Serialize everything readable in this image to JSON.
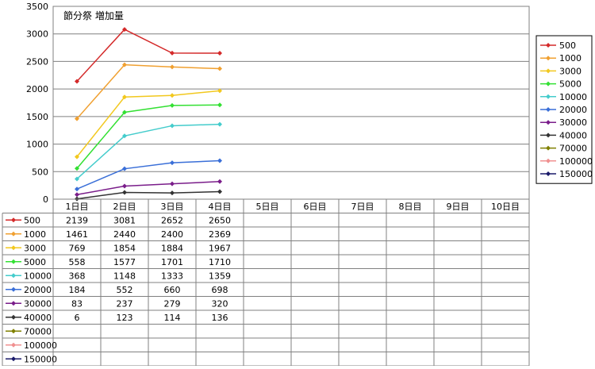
{
  "chart_data": {
    "type": "line",
    "title": "節分祭  増加量",
    "xlabel": "",
    "ylabel": "",
    "ylim": [
      0,
      3500
    ],
    "yticks": [
      0,
      500,
      1000,
      1500,
      2000,
      2500,
      3000,
      3500
    ],
    "grid": true,
    "legend_position": "right",
    "data_table": true,
    "categories": [
      "1日目",
      "2日目",
      "3日目",
      "4日目",
      "5日目",
      "6日目",
      "7日目",
      "8日目",
      "9日目",
      "10日目"
    ],
    "series": [
      {
        "name": "500",
        "color": "#d42a2a",
        "values": [
          2139,
          3081,
          2652,
          2650,
          null,
          null,
          null,
          null,
          null,
          null
        ]
      },
      {
        "name": "1000",
        "color": "#f0a030",
        "values": [
          1461,
          2440,
          2400,
          2369,
          null,
          null,
          null,
          null,
          null,
          null
        ]
      },
      {
        "name": "3000",
        "color": "#f2c81e",
        "values": [
          769,
          1854,
          1884,
          1967,
          null,
          null,
          null,
          null,
          null,
          null
        ]
      },
      {
        "name": "5000",
        "color": "#33e033",
        "values": [
          558,
          1577,
          1701,
          1710,
          null,
          null,
          null,
          null,
          null,
          null
        ]
      },
      {
        "name": "10000",
        "color": "#44cccc",
        "values": [
          368,
          1148,
          1333,
          1359,
          null,
          null,
          null,
          null,
          null,
          null
        ]
      },
      {
        "name": "20000",
        "color": "#3a6fd8",
        "values": [
          184,
          552,
          660,
          698,
          null,
          null,
          null,
          null,
          null,
          null
        ]
      },
      {
        "name": "30000",
        "color": "#7a1d8a",
        "values": [
          83,
          237,
          279,
          320,
          null,
          null,
          null,
          null,
          null,
          null
        ]
      },
      {
        "name": "40000",
        "color": "#333333",
        "values": [
          6,
          123,
          114,
          136,
          null,
          null,
          null,
          null,
          null,
          null
        ]
      },
      {
        "name": "70000",
        "color": "#808000",
        "values": [
          null,
          null,
          null,
          null,
          null,
          null,
          null,
          null,
          null,
          null
        ]
      },
      {
        "name": "100000",
        "color": "#f09090",
        "values": [
          null,
          null,
          null,
          null,
          null,
          null,
          null,
          null,
          null,
          null
        ]
      },
      {
        "name": "150000",
        "color": "#1a1a6a",
        "values": [
          null,
          null,
          null,
          null,
          null,
          null,
          null,
          null,
          null,
          null
        ]
      }
    ]
  }
}
